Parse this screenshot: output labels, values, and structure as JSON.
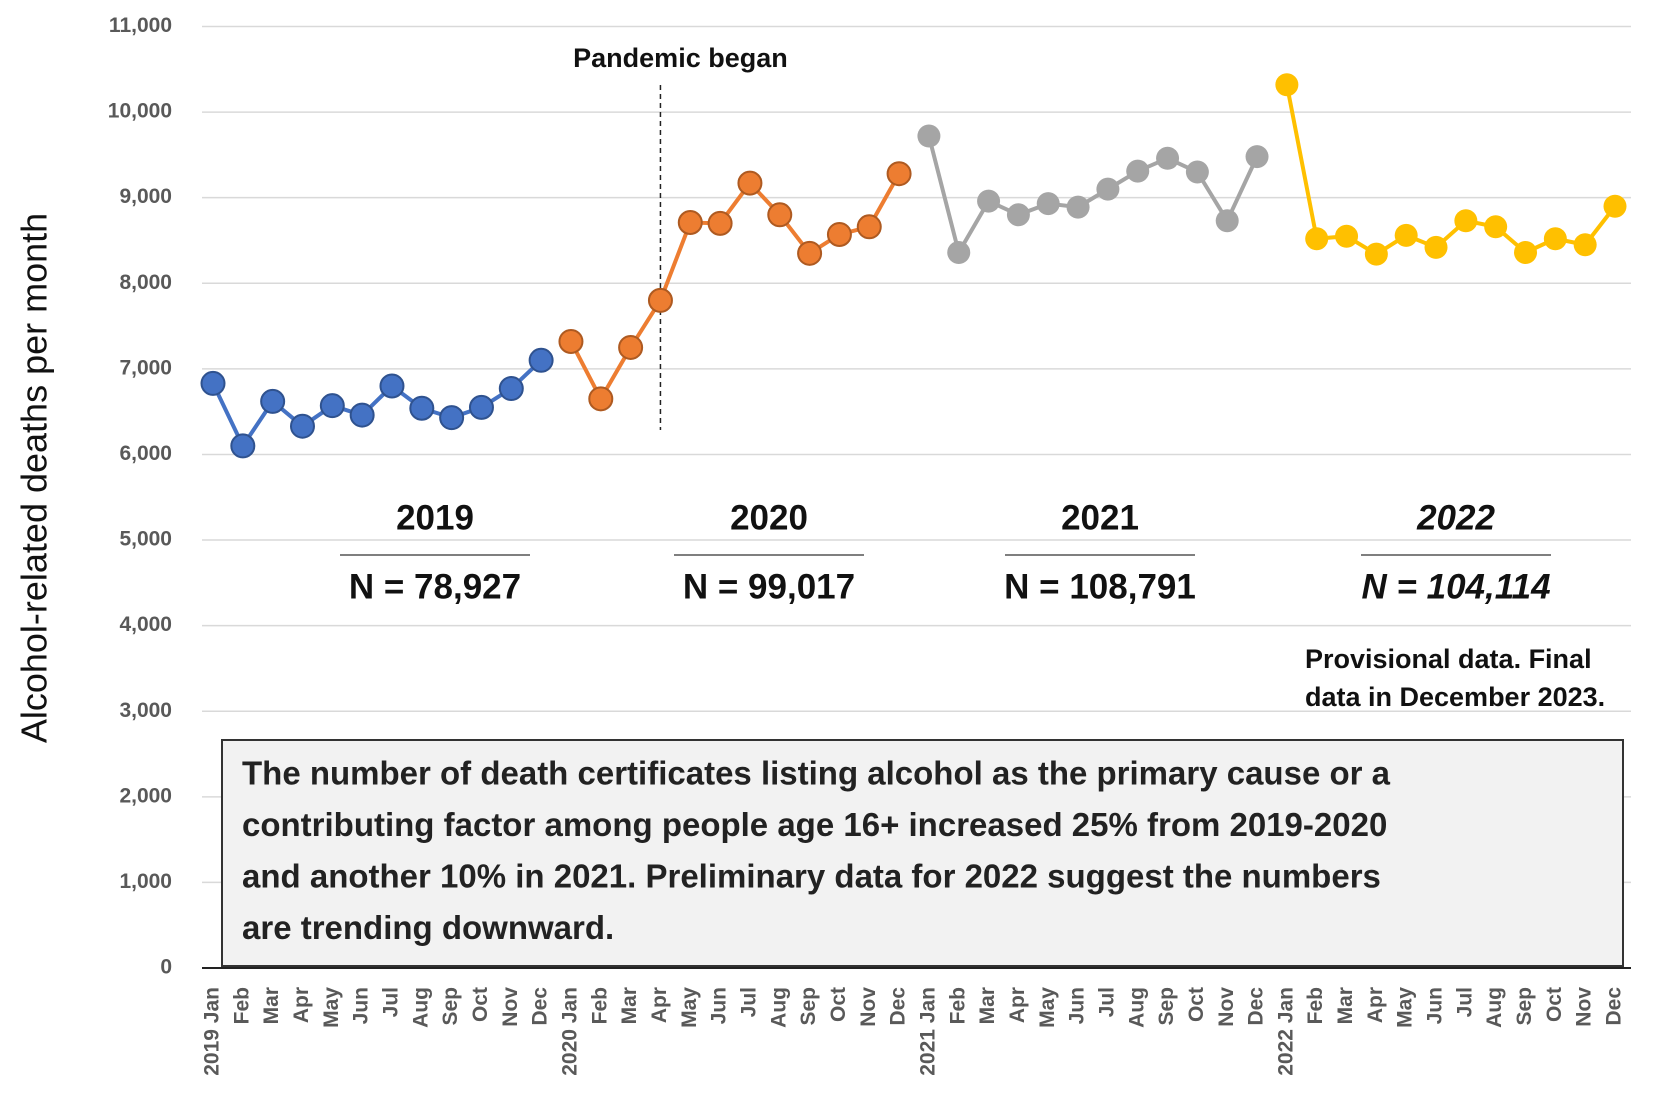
{
  "chart_data": {
    "type": "line",
    "y_label": "Alcohol-related deaths per month",
    "categories": [
      "2019 Jan",
      "Feb",
      "Mar",
      "Apr",
      "May",
      "Jun",
      "Jul",
      "Aug",
      "Sep",
      "Oct",
      "Nov",
      "Dec",
      "2020 Jan",
      "Feb",
      "Mar",
      "Apr",
      "May",
      "Jun",
      "Jul",
      "Aug",
      "Sep",
      "Oct",
      "Nov",
      "Dec",
      "2021 Jan",
      "Feb",
      "Mar",
      "Apr",
      "May",
      "Jun",
      "Jul",
      "Aug",
      "Sep",
      "Oct",
      "Nov",
      "Dec",
      "2022 Jan",
      "Feb",
      "Mar",
      "Apr",
      "May",
      "Jun",
      "Jul",
      "Aug",
      "Sep",
      "Oct",
      "Nov",
      "Dec"
    ],
    "series": [
      {
        "name": "2019",
        "color": "#4472c4",
        "edge_color": "#2f528f",
        "values": [
          6830,
          6100,
          6620,
          6330,
          6570,
          6460,
          6800,
          6540,
          6430,
          6550,
          6770,
          7100,
          null,
          null,
          null,
          null,
          null,
          null,
          null,
          null,
          null,
          null,
          null,
          null,
          null,
          null,
          null,
          null,
          null,
          null,
          null,
          null,
          null,
          null,
          null,
          null,
          null,
          null,
          null,
          null,
          null,
          null,
          null,
          null,
          null,
          null,
          null,
          null
        ]
      },
      {
        "name": "2020",
        "color": "#ed7d31",
        "edge_color": "#ae5a21",
        "values": [
          null,
          null,
          null,
          null,
          null,
          null,
          null,
          null,
          null,
          null,
          null,
          null,
          7320,
          6650,
          7250,
          7800,
          8710,
          8700,
          9170,
          8800,
          8350,
          8570,
          8660,
          9280,
          null,
          null,
          null,
          null,
          null,
          null,
          null,
          null,
          null,
          null,
          null,
          null,
          null,
          null,
          null,
          null,
          null,
          null,
          null,
          null,
          null,
          null,
          null,
          null
        ]
      },
      {
        "name": "2021",
        "color": "#a5a5a5",
        "values": [
          null,
          null,
          null,
          null,
          null,
          null,
          null,
          null,
          null,
          null,
          null,
          null,
          null,
          null,
          null,
          null,
          null,
          null,
          null,
          null,
          null,
          null,
          null,
          null,
          9720,
          8360,
          8960,
          8800,
          8930,
          8890,
          9100,
          9310,
          9460,
          9300,
          8730,
          9480,
          null,
          null,
          null,
          null,
          null,
          null,
          null,
          null,
          null,
          null,
          null,
          null
        ]
      },
      {
        "name": "2022",
        "color": "#ffc000",
        "values": [
          null,
          null,
          null,
          null,
          null,
          null,
          null,
          null,
          null,
          null,
          null,
          null,
          null,
          null,
          null,
          null,
          null,
          null,
          null,
          null,
          null,
          null,
          null,
          null,
          null,
          null,
          null,
          null,
          null,
          null,
          null,
          null,
          null,
          null,
          null,
          null,
          10320,
          8520,
          8550,
          8340,
          8560,
          8420,
          8730,
          8660,
          8360,
          8520,
          8450,
          8900
        ]
      }
    ],
    "ylim": [
      0,
      11000
    ],
    "yticks": [
      0,
      {
        "value": 1000,
        "label": "1,000"
      },
      {
        "value": 2000,
        "label": "2,000"
      },
      {
        "value": 3000,
        "label": "3,000"
      },
      {
        "value": 4000,
        "label": "4,000"
      },
      {
        "value": 5000,
        "label": "5,000"
      },
      {
        "value": 6000,
        "label": "6,000"
      },
      {
        "value": 7000,
        "label": "7,000"
      },
      {
        "value": 8000,
        "label": "8,000"
      },
      {
        "value": 9000,
        "label": "9,000"
      },
      {
        "value": 10000,
        "label": "10,000"
      },
      {
        "value": 11000,
        "label": "11,000"
      }
    ],
    "grid": true,
    "pandemic_marker": {
      "label": "Pandemic began",
      "category_index": 15
    },
    "year_summaries": [
      {
        "year": "2019",
        "n": "N = 78,927",
        "italic": false
      },
      {
        "year": "2020",
        "n": "N = 99,017",
        "italic": false
      },
      {
        "year": "2021",
        "n": "N = 108,791",
        "italic": false
      },
      {
        "year": "2022",
        "n": "N = 104,114",
        "italic": true
      }
    ],
    "note": [
      "Provisional data. Final",
      "data in December 2023."
    ],
    "summary_box": [
      "The number of death certificates listing alcohol as the primary cause or a",
      "contributing factor among people age 16+ increased 25% from 2019-2020",
      "and another 10% in 2021. Preliminary data for 2022 suggest the numbers",
      "are trending downward."
    ]
  }
}
